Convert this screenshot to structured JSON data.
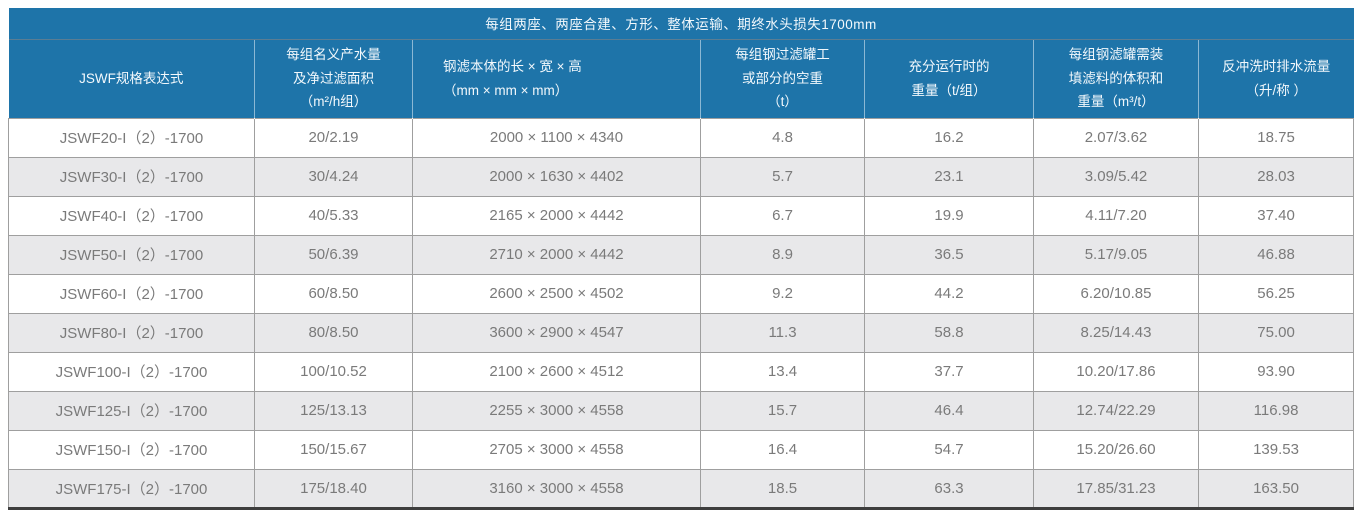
{
  "banner": "每组两座、两座合建、方形、整体运输、期终水头损失1700mm",
  "table": {
    "headers": [
      "JSWF规格表达式",
      "每组名义产水量\n及净过滤面积\n（m²/h组）",
      "钢滤本体的长 × 宽 × 高\n（mm × mm × mm）",
      "每组钢过滤罐工\n或部分的空重\n（t）",
      "充分运行时的\n重量（t/组）",
      "每组钢滤罐需装\n填滤料的体积和\n重量（m³/t）",
      "反冲洗时排水流量\n（升/称 ）"
    ],
    "rows": [
      [
        "JSWF20-I（2）-1700",
        "20/2.19",
        "2000 × 1100 × 4340",
        "4.8",
        "16.2",
        "2.07/3.62",
        "18.75"
      ],
      [
        "JSWF30-I（2）-1700",
        "30/4.24",
        "2000 × 1630 × 4402",
        "5.7",
        "23.1",
        "3.09/5.42",
        "28.03"
      ],
      [
        "JSWF40-I（2）-1700",
        "40/5.33",
        "2165 × 2000 × 4442",
        "6.7",
        "19.9",
        "4.11/7.20",
        "37.40"
      ],
      [
        "JSWF50-I（2）-1700",
        "50/6.39",
        "2710 × 2000 × 4442",
        "8.9",
        "36.5",
        "5.17/9.05",
        "46.88"
      ],
      [
        "JSWF60-I（2）-1700",
        "60/8.50",
        "2600 × 2500 × 4502",
        "9.2",
        "44.2",
        "6.20/10.85",
        "56.25"
      ],
      [
        "JSWF80-I（2）-1700",
        "80/8.50",
        "3600 × 2900 × 4547",
        "11.3",
        "58.8",
        "8.25/14.43",
        "75.00"
      ],
      [
        "JSWF100-I（2）-1700",
        "100/10.52",
        "2100 × 2600 × 4512",
        "13.4",
        "37.7",
        "10.20/17.86",
        "93.90"
      ],
      [
        "JSWF125-I（2）-1700",
        "125/13.13",
        "2255 × 3000 × 4558",
        "15.7",
        "46.4",
        "12.74/22.29",
        "116.98"
      ],
      [
        "JSWF150-I（2）-1700",
        "150/15.67",
        "2705 × 3000 × 4558",
        "16.4",
        "54.7",
        "15.20/26.60",
        "139.53"
      ],
      [
        "JSWF175-I（2）-1700",
        "175/18.40",
        "3160 × 3000 × 4558",
        "18.5",
        "63.3",
        "17.85/31.23",
        "163.50"
      ]
    ]
  },
  "colors": {
    "header_blue": "#1e74a9",
    "stripe_gray": "#e8e8ea",
    "border_gray": "#9f9f9f",
    "bottom_rule": "#3e3e3e",
    "data_text": "#7a7a7a",
    "header_text": "#f2f8fc"
  }
}
